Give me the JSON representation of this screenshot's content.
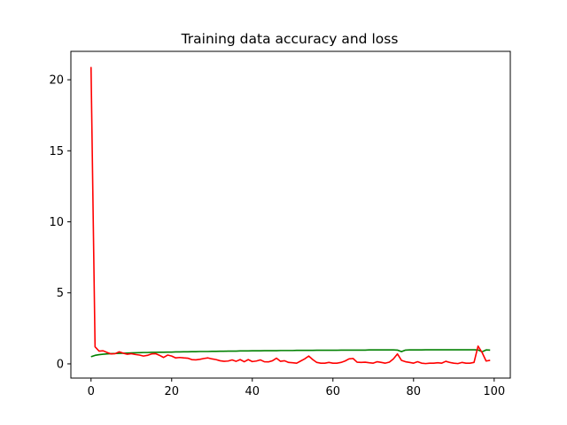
{
  "chart_data": {
    "type": "line",
    "title": "Training data accuracy and loss",
    "xlabel": "",
    "ylabel": "",
    "xlim": [
      -5,
      104
    ],
    "ylim": [
      -1,
      22
    ],
    "xticks": [
      0,
      20,
      40,
      60,
      80,
      100
    ],
    "yticks": [
      0,
      5,
      10,
      15,
      20
    ],
    "grid": false,
    "legend": "none",
    "series": [
      {
        "color": "#008000",
        "values": [
          0.5,
          0.6,
          0.65,
          0.68,
          0.7,
          0.72,
          0.73,
          0.74,
          0.75,
          0.76,
          0.77,
          0.78,
          0.79,
          0.8,
          0.8,
          0.81,
          0.81,
          0.82,
          0.82,
          0.83,
          0.83,
          0.84,
          0.84,
          0.85,
          0.85,
          0.86,
          0.86,
          0.87,
          0.87,
          0.87,
          0.88,
          0.88,
          0.89,
          0.89,
          0.9,
          0.9,
          0.9,
          0.91,
          0.91,
          0.91,
          0.92,
          0.92,
          0.92,
          0.93,
          0.93,
          0.93,
          0.93,
          0.94,
          0.94,
          0.94,
          0.94,
          0.95,
          0.95,
          0.95,
          0.95,
          0.95,
          0.96,
          0.96,
          0.96,
          0.96,
          0.96,
          0.96,
          0.97,
          0.97,
          0.97,
          0.97,
          0.97,
          0.97,
          0.97,
          0.98,
          0.98,
          0.98,
          0.98,
          0.98,
          0.98,
          0.98,
          0.97,
          0.86,
          0.97,
          0.98,
          0.98,
          0.98,
          0.98,
          0.99,
          0.99,
          0.99,
          0.99,
          0.99,
          0.99,
          0.99,
          0.99,
          0.99,
          0.99,
          0.99,
          0.99,
          0.99,
          0.98,
          0.85,
          0.98,
          0.97
        ]
      },
      {
        "color": "#ff0000",
        "values": [
          20.9,
          1.2,
          0.9,
          0.92,
          0.8,
          0.7,
          0.72,
          0.85,
          0.75,
          0.68,
          0.72,
          0.66,
          0.62,
          0.55,
          0.6,
          0.7,
          0.72,
          0.6,
          0.45,
          0.62,
          0.55,
          0.42,
          0.45,
          0.42,
          0.4,
          0.3,
          0.28,
          0.32,
          0.38,
          0.42,
          0.35,
          0.3,
          0.22,
          0.18,
          0.2,
          0.28,
          0.18,
          0.3,
          0.15,
          0.3,
          0.16,
          0.2,
          0.28,
          0.15,
          0.14,
          0.22,
          0.4,
          0.18,
          0.22,
          0.1,
          0.08,
          0.05,
          0.2,
          0.35,
          0.55,
          0.3,
          0.1,
          0.05,
          0.05,
          0.1,
          0.05,
          0.05,
          0.1,
          0.2,
          0.35,
          0.38,
          0.12,
          0.1,
          0.12,
          0.08,
          0.05,
          0.15,
          0.1,
          0.05,
          0.12,
          0.35,
          0.7,
          0.25,
          0.15,
          0.1,
          0.05,
          0.15,
          0.05,
          0.02,
          0.05,
          0.05,
          0.08,
          0.05,
          0.18,
          0.1,
          0.05,
          0.02,
          0.1,
          0.05,
          0.05,
          0.1,
          1.25,
          0.8,
          0.2,
          0.25
        ]
      }
    ]
  }
}
